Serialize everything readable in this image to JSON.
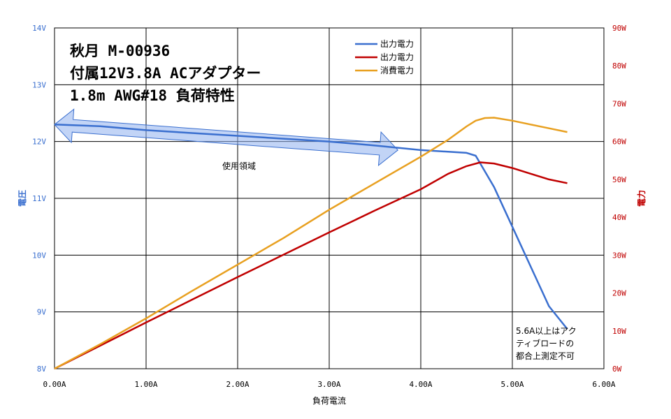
{
  "chart_data": {
    "type": "line",
    "title_lines": [
      "秋月 M-00936",
      "付属12V3.8A ACアダプター",
      "1.8m AWG#18 負荷特性"
    ],
    "xlabel": "負荷電流",
    "ylabel_left": "電圧",
    "ylabel_right": "電力",
    "xlim": [
      0,
      6
    ],
    "ylim_left": [
      8,
      14
    ],
    "ylim_right": [
      0,
      90
    ],
    "x_ticks": [
      "0.00A",
      "1.00A",
      "2.00A",
      "3.00A",
      "4.00A",
      "5.00A",
      "6.00A"
    ],
    "y_ticks_left": [
      "8V",
      "9V",
      "10V",
      "11V",
      "12V",
      "13V",
      "14V"
    ],
    "y_ticks_right": [
      "0W",
      "10W",
      "20W",
      "30W",
      "40W",
      "50W",
      "60W",
      "70W",
      "80W",
      "90W"
    ],
    "grid": true,
    "legend_position": "top-center",
    "colors": {
      "left_axis": "#3a6fcf",
      "right_axis": "#c00000"
    },
    "series": [
      {
        "name": "出力電力",
        "axis": "left",
        "color": "#3a6fcf",
        "x": [
          0,
          0.5,
          1.0,
          1.5,
          2.0,
          2.5,
          3.0,
          3.5,
          4.0,
          4.2,
          4.5,
          4.6,
          4.8,
          5.0,
          5.2,
          5.4,
          5.6
        ],
        "y": [
          12.3,
          12.27,
          12.2,
          12.15,
          12.1,
          12.05,
          12.0,
          11.93,
          11.85,
          11.83,
          11.8,
          11.75,
          11.2,
          10.5,
          9.8,
          9.1,
          8.7
        ]
      },
      {
        "name": "出力電力",
        "axis": "right",
        "color": "#c00000",
        "x": [
          0,
          0.5,
          1.0,
          1.5,
          2.0,
          2.5,
          3.0,
          3.5,
          4.0,
          4.3,
          4.5,
          4.65,
          4.8,
          5.0,
          5.2,
          5.4,
          5.6
        ],
        "y": [
          0,
          6.1,
          12.2,
          18.2,
          24.2,
          30.1,
          36.0,
          41.8,
          47.4,
          51.5,
          53.5,
          54.5,
          54.2,
          53.0,
          51.5,
          50.0,
          49.0
        ]
      },
      {
        "name": "消費電力",
        "axis": "right",
        "color": "#e8a020",
        "x": [
          0,
          0.5,
          1.0,
          1.5,
          2.0,
          2.5,
          3.0,
          3.5,
          4.0,
          4.3,
          4.5,
          4.6,
          4.7,
          4.8,
          5.0,
          5.2,
          5.4,
          5.6
        ],
        "y": [
          0,
          6.5,
          13.3,
          20.5,
          27.5,
          34.5,
          42.0,
          49.0,
          56.0,
          60.5,
          64.0,
          65.5,
          66.2,
          66.3,
          65.5,
          64.5,
          63.5,
          62.5
        ]
      }
    ],
    "annotations": {
      "usage_region_label": "使用領域",
      "usage_region_x": [
        0,
        3.75
      ],
      "usage_region_y": [
        12.3,
        11.85
      ],
      "note_lines": [
        "5.6A以上はアク",
        "ティブロードの",
        "都合上測定不可"
      ]
    }
  }
}
